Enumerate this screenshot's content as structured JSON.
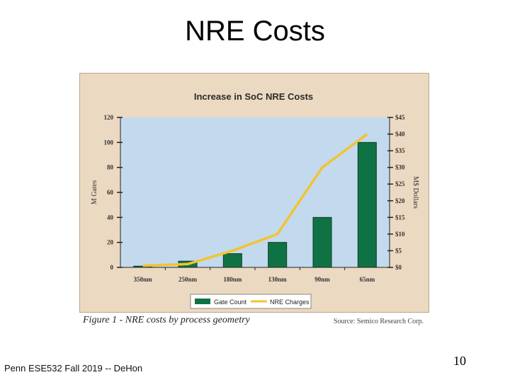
{
  "slide": {
    "title": "NRE Costs",
    "footer": "Penn ESE532 Fall 2019 -- DeHon",
    "page_number": "10"
  },
  "figure": {
    "caption": "Figure 1 - NRE costs by process geometry",
    "source": "Source: Semico Research Corp."
  },
  "colors": {
    "panel_bg": "#ecd9c1",
    "plot_bg": "#c3d9ee",
    "bar": "#0f7245",
    "line": "#f2c42e"
  },
  "chart_data": {
    "type": "bar",
    "title": "Increase in SoC NRE Costs",
    "categories": [
      "350nm",
      "250nm",
      "180nm",
      "130nm",
      "90nm",
      "65nm"
    ],
    "series": [
      {
        "name": "Gate Count",
        "type": "bar",
        "axis": "left",
        "values": [
          1,
          5,
          11,
          20,
          40,
          100
        ]
      },
      {
        "name": "NRE Charges",
        "type": "line",
        "axis": "right",
        "values": [
          0.5,
          1,
          5,
          10,
          30,
          40
        ]
      }
    ],
    "ylabel": "M Gates",
    "y2label": "M$ Dollars",
    "ylim": [
      0,
      120
    ],
    "y2lim": [
      0,
      45
    ],
    "yticks": [
      "0",
      "20",
      "40",
      "60",
      "80",
      "100",
      "120"
    ],
    "y2ticks": [
      "$0",
      "$5",
      "$10",
      "$15",
      "$20",
      "$25",
      "$30",
      "$35",
      "$40",
      "$45"
    ],
    "legend": "bottom-center"
  }
}
